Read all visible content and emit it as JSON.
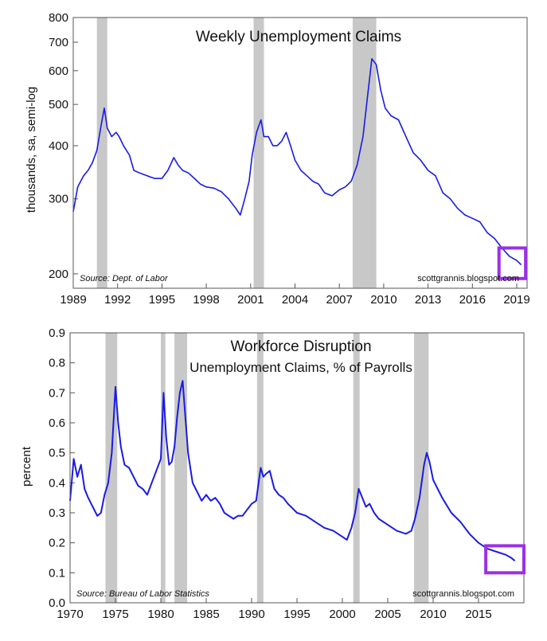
{
  "chart_data": [
    {
      "type": "line",
      "title": "Weekly Unemployment Claims",
      "ylabel": "thousands, sa, semi-log",
      "yscale": "log",
      "ylim": [
        185,
        800
      ],
      "xlim": [
        1989,
        2019.7
      ],
      "y_ticks": [
        200,
        300,
        400,
        500,
        600,
        700,
        800
      ],
      "x_ticks": [
        1989,
        1992,
        1995,
        1998,
        2001,
        2004,
        2007,
        2010,
        2013,
        2016,
        2019
      ],
      "source": "Source:  Dept. of Labor",
      "credit": "scottgrannis.blogspot.com",
      "recessions": [
        [
          1990.6,
          1991.3
        ],
        [
          2001.2,
          2001.9
        ],
        [
          2007.9,
          2009.5
        ]
      ],
      "highlight_box": [
        2017.8,
        2019.6,
        195,
        230
      ],
      "colors": {
        "line": "#1a1ae6",
        "recession": "#c8c8c8",
        "highlight": "#9b30e6"
      },
      "series": [
        {
          "x": [
            1989.0,
            1989.3,
            1989.7,
            1990.0,
            1990.3,
            1990.6,
            1990.9,
            1991.1,
            1991.3,
            1991.6,
            1991.9,
            1992.1,
            1992.4,
            1992.8,
            1993.1,
            1993.5,
            1994.0,
            1994.5,
            1995.0,
            1995.4,
            1995.8,
            1996.1,
            1996.4,
            1996.8,
            1997.2,
            1997.6,
            1998.0,
            1998.5,
            1999.0,
            1999.5,
            2000.0,
            2000.3,
            2000.6,
            2000.9,
            2001.1,
            2001.4,
            2001.7,
            2001.9,
            2002.2,
            2002.5,
            2002.8,
            2003.1,
            2003.4,
            2003.7,
            2004.0,
            2004.4,
            2004.8,
            2005.2,
            2005.6,
            2006.0,
            2006.5,
            2007.0,
            2007.4,
            2007.8,
            2008.2,
            2008.6,
            2008.9,
            2009.2,
            2009.5,
            2009.8,
            2010.1,
            2010.5,
            2011.0,
            2011.5,
            2012.0,
            2012.5,
            2013.0,
            2013.5,
            2014.0,
            2014.5,
            2015.0,
            2015.5,
            2016.0,
            2016.5,
            2017.0,
            2017.5,
            2018.0,
            2018.5,
            2019.0,
            2019.3
          ],
          "y": [
            280,
            320,
            340,
            350,
            365,
            390,
            450,
            490,
            440,
            420,
            430,
            420,
            400,
            380,
            350,
            345,
            340,
            335,
            335,
            350,
            375,
            360,
            350,
            345,
            335,
            325,
            320,
            318,
            312,
            300,
            285,
            275,
            300,
            330,
            380,
            430,
            460,
            420,
            420,
            400,
            400,
            410,
            430,
            400,
            370,
            350,
            340,
            330,
            325,
            310,
            305,
            315,
            320,
            330,
            360,
            420,
            520,
            640,
            620,
            540,
            490,
            470,
            460,
            420,
            385,
            370,
            350,
            340,
            310,
            300,
            285,
            275,
            270,
            265,
            250,
            242,
            230,
            220,
            215,
            210
          ]
        }
      ]
    },
    {
      "type": "line",
      "title": "Workforce Disruption",
      "subtitle": "Unemployment Claims, % of Payrolls",
      "ylabel": "percent",
      "ylim": [
        0.0,
        0.9
      ],
      "xlim": [
        1970,
        2020
      ],
      "y_ticks": [
        "0.0",
        "0.1",
        "0.2",
        "0.3",
        "0.4",
        "0.5",
        "0.6",
        "0.7",
        "0.8",
        "0.9"
      ],
      "x_ticks": [
        1970,
        1975,
        1980,
        1985,
        1990,
        1995,
        2000,
        2005,
        2010,
        2015
      ],
      "source": "Source: Bureau of Labor Statistics",
      "credit": "scottgrannis.blogspot.com",
      "recessions": [
        [
          1973.9,
          1975.2
        ],
        [
          1980.0,
          1980.5
        ],
        [
          1981.5,
          1982.9
        ],
        [
          1990.6,
          1991.3
        ],
        [
          2001.2,
          2001.9
        ],
        [
          2007.9,
          2009.5
        ]
      ],
      "highlight_box": [
        2015.8,
        2020.0,
        0.1,
        0.19
      ],
      "colors": {
        "line": "#1a1ae6",
        "recession": "#c8c8c8",
        "highlight": "#9b30e6"
      },
      "series": [
        {
          "x": [
            1970.0,
            1970.4,
            1970.8,
            1971.2,
            1971.6,
            1972.0,
            1972.5,
            1973.0,
            1973.4,
            1973.8,
            1974.2,
            1974.6,
            1975.0,
            1975.3,
            1975.6,
            1976.0,
            1976.5,
            1977.0,
            1977.5,
            1978.0,
            1978.5,
            1979.0,
            1979.5,
            1980.0,
            1980.3,
            1980.6,
            1980.9,
            1981.2,
            1981.5,
            1981.8,
            1982.1,
            1982.4,
            1982.7,
            1983.0,
            1983.5,
            1984.0,
            1984.5,
            1985.0,
            1985.5,
            1986.0,
            1986.5,
            1987.0,
            1987.5,
            1988.0,
            1988.5,
            1989.0,
            1989.5,
            1990.0,
            1990.5,
            1991.0,
            1991.3,
            1991.6,
            1992.0,
            1992.5,
            1993.0,
            1993.5,
            1994.0,
            1995.0,
            1996.0,
            1997.0,
            1998.0,
            1999.0,
            2000.0,
            2000.5,
            2001.0,
            2001.4,
            2001.8,
            2002.2,
            2002.6,
            2003.0,
            2003.5,
            2004.0,
            2005.0,
            2006.0,
            2007.0,
            2007.6,
            2008.0,
            2008.5,
            2009.0,
            2009.3,
            2009.6,
            2010.0,
            2010.5,
            2011.0,
            2012.0,
            2013.0,
            2014.0,
            2015.0,
            2016.0,
            2017.0,
            2018.0,
            2018.6,
            2019.0
          ],
          "y": [
            0.34,
            0.48,
            0.42,
            0.46,
            0.38,
            0.35,
            0.32,
            0.29,
            0.3,
            0.36,
            0.4,
            0.5,
            0.72,
            0.6,
            0.52,
            0.46,
            0.45,
            0.42,
            0.39,
            0.38,
            0.36,
            0.4,
            0.44,
            0.48,
            0.7,
            0.55,
            0.46,
            0.47,
            0.52,
            0.62,
            0.7,
            0.74,
            0.62,
            0.5,
            0.4,
            0.37,
            0.34,
            0.36,
            0.34,
            0.35,
            0.33,
            0.3,
            0.29,
            0.28,
            0.29,
            0.29,
            0.31,
            0.33,
            0.34,
            0.45,
            0.42,
            0.43,
            0.44,
            0.38,
            0.36,
            0.35,
            0.33,
            0.3,
            0.29,
            0.27,
            0.25,
            0.24,
            0.22,
            0.21,
            0.25,
            0.3,
            0.38,
            0.35,
            0.32,
            0.33,
            0.3,
            0.28,
            0.26,
            0.24,
            0.23,
            0.24,
            0.28,
            0.35,
            0.46,
            0.5,
            0.47,
            0.41,
            0.38,
            0.35,
            0.3,
            0.27,
            0.23,
            0.2,
            0.18,
            0.17,
            0.16,
            0.15,
            0.14
          ]
        }
      ]
    }
  ]
}
